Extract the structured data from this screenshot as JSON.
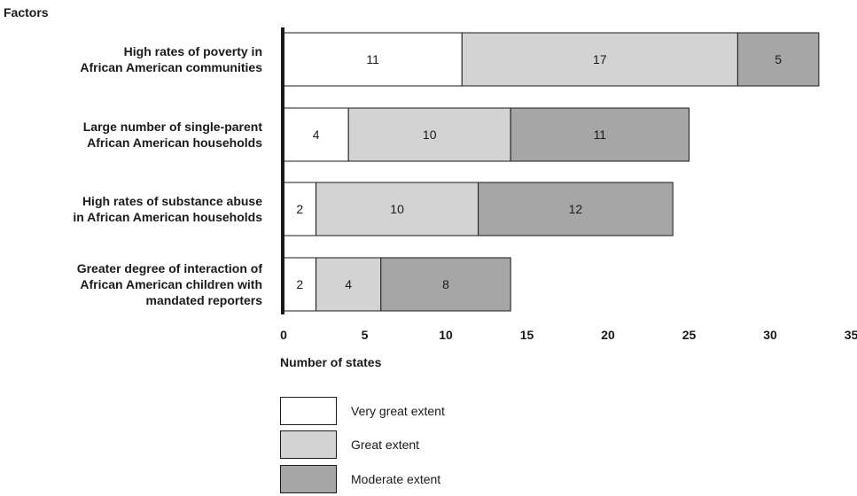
{
  "chart_data": {
    "type": "bar",
    "orientation": "horizontal",
    "stacked": true,
    "title": "",
    "ylabel": "Factors",
    "xlabel": "Number of states",
    "xlim": [
      0,
      35
    ],
    "xticks": [
      0,
      5,
      10,
      15,
      20,
      25,
      30,
      35
    ],
    "grid": false,
    "legend_position": "bottom-left",
    "categories": [
      [
        "High rates of poverty in",
        "African American communities"
      ],
      [
        "Large number of single-parent",
        "African American households"
      ],
      [
        "High rates of substance abuse",
        "in African American households"
      ],
      [
        "Greater degree of interaction of",
        "African American children with",
        "mandated reporters"
      ]
    ],
    "series": [
      {
        "name": "Very great extent",
        "color": "#ffffff",
        "values": [
          11,
          4,
          2,
          2
        ]
      },
      {
        "name": "Great extent",
        "color": "#d3d3d3",
        "values": [
          17,
          10,
          10,
          4
        ]
      },
      {
        "name": "Moderate extent",
        "color": "#a6a6a6",
        "values": [
          5,
          11,
          12,
          8
        ]
      }
    ]
  }
}
